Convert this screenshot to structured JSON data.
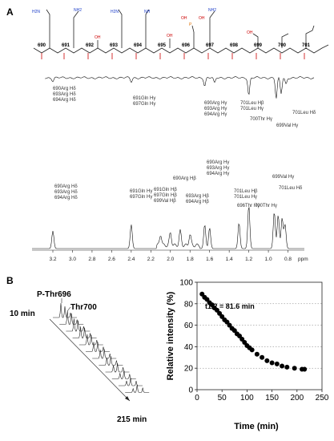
{
  "panel_a": {
    "label": "A",
    "residues": [
      "690",
      "691",
      "692",
      "693",
      "694",
      "695",
      "696",
      "697",
      "698",
      "699",
      "700",
      "701"
    ],
    "nh2": "NH2",
    "nh": "NH",
    "h2n": "H2N",
    "oh": "OH",
    "p": "P",
    "o": "O",
    "upper_annotations": [
      {
        "id": "ua1",
        "lines": [
          "690Arg Hδ",
          "693Arg Hδ",
          "694Arg Hδ"
        ]
      },
      {
        "id": "ua2",
        "lines": [
          "691Gln Hγ",
          "697Gln Hγ"
        ]
      },
      {
        "id": "ua3",
        "lines": [
          "690Arg Hγ",
          "693Arg Hγ",
          "694Arg Hγ"
        ]
      },
      {
        "id": "ua4",
        "lines": [
          "701Leu Hβ",
          "701Leu Hγ"
        ]
      },
      {
        "id": "ua5",
        "lines": [
          "700Thr Hγ"
        ]
      },
      {
        "id": "ua6",
        "lines": [
          "699Val Hγ"
        ]
      },
      {
        "id": "ua7",
        "lines": [
          "701Leu Hδ"
        ]
      }
    ],
    "lower_annotations": [
      {
        "id": "la1",
        "lines": [
          "690Arg Hδ",
          "693Arg Hδ",
          "694Arg Hδ"
        ]
      },
      {
        "id": "la2",
        "lines": [
          "691Gln Hγ",
          "697Gln Hγ"
        ]
      },
      {
        "id": "la3",
        "lines": [
          "691Gln Hβ",
          "697Gln Hβ",
          "699Val Hβ"
        ]
      },
      {
        "id": "la4",
        "lines": [
          "690Arg Hβ"
        ]
      },
      {
        "id": "la5",
        "lines": [
          "693Arg Hβ",
          "694Arg Hβ"
        ]
      },
      {
        "id": "la6",
        "lines": [
          "690Arg Hγ",
          "693Arg Hγ",
          "694Arg Hγ"
        ]
      },
      {
        "id": "la7",
        "lines": [
          "701Leu Hβ",
          "701Leu Hγ"
        ]
      },
      {
        "id": "la8",
        "lines": [
          "696Thr Hγ"
        ]
      },
      {
        "id": "la9",
        "lines": [
          "700Thr Hγ"
        ]
      },
      {
        "id": "la10",
        "lines": [
          "699Val Hγ"
        ]
      },
      {
        "id": "la11",
        "lines": [
          "701Leu Hδ"
        ]
      }
    ],
    "ppm_ticks": [
      "3.2",
      "3.0",
      "2.8",
      "2.6",
      "2.4",
      "2.2",
      "2.0",
      "1.8",
      "1.6",
      "1.4",
      "1.2",
      "1.0",
      "0.8"
    ],
    "ppm_unit": "ppm"
  },
  "panel_b": {
    "label": "B",
    "stack_labels": {
      "top_time": "10 min",
      "bottom_time": "215 min",
      "peak1": "P-Thr696",
      "peak2": "Thr700"
    },
    "half_life": "t1/2 = 81.6 min"
  },
  "chart_data": {
    "type": "scatter",
    "title": "",
    "xlabel": "Time (min)",
    "ylabel": "Relative intensity (%)",
    "xlim": [
      0,
      250
    ],
    "ylim": [
      0,
      100
    ],
    "xticks": [
      "0",
      "50",
      "100",
      "150",
      "200",
      "250"
    ],
    "yticks": [
      "0",
      "20",
      "40",
      "60",
      "80",
      "100"
    ],
    "grid": "horizontal dotted",
    "x": [
      10,
      15,
      20,
      25,
      30,
      35,
      40,
      45,
      50,
      55,
      60,
      65,
      70,
      75,
      80,
      85,
      90,
      95,
      100,
      105,
      110,
      120,
      130,
      140,
      150,
      160,
      170,
      180,
      195,
      210,
      215
    ],
    "y": [
      89,
      86,
      84,
      81,
      79,
      76,
      74,
      71,
      68,
      65,
      63,
      60,
      57,
      55,
      52,
      50,
      47,
      44,
      41,
      39,
      37,
      33,
      30,
      27,
      25,
      24,
      22,
      21,
      20,
      19,
      19
    ],
    "marker_color": "#000000"
  }
}
